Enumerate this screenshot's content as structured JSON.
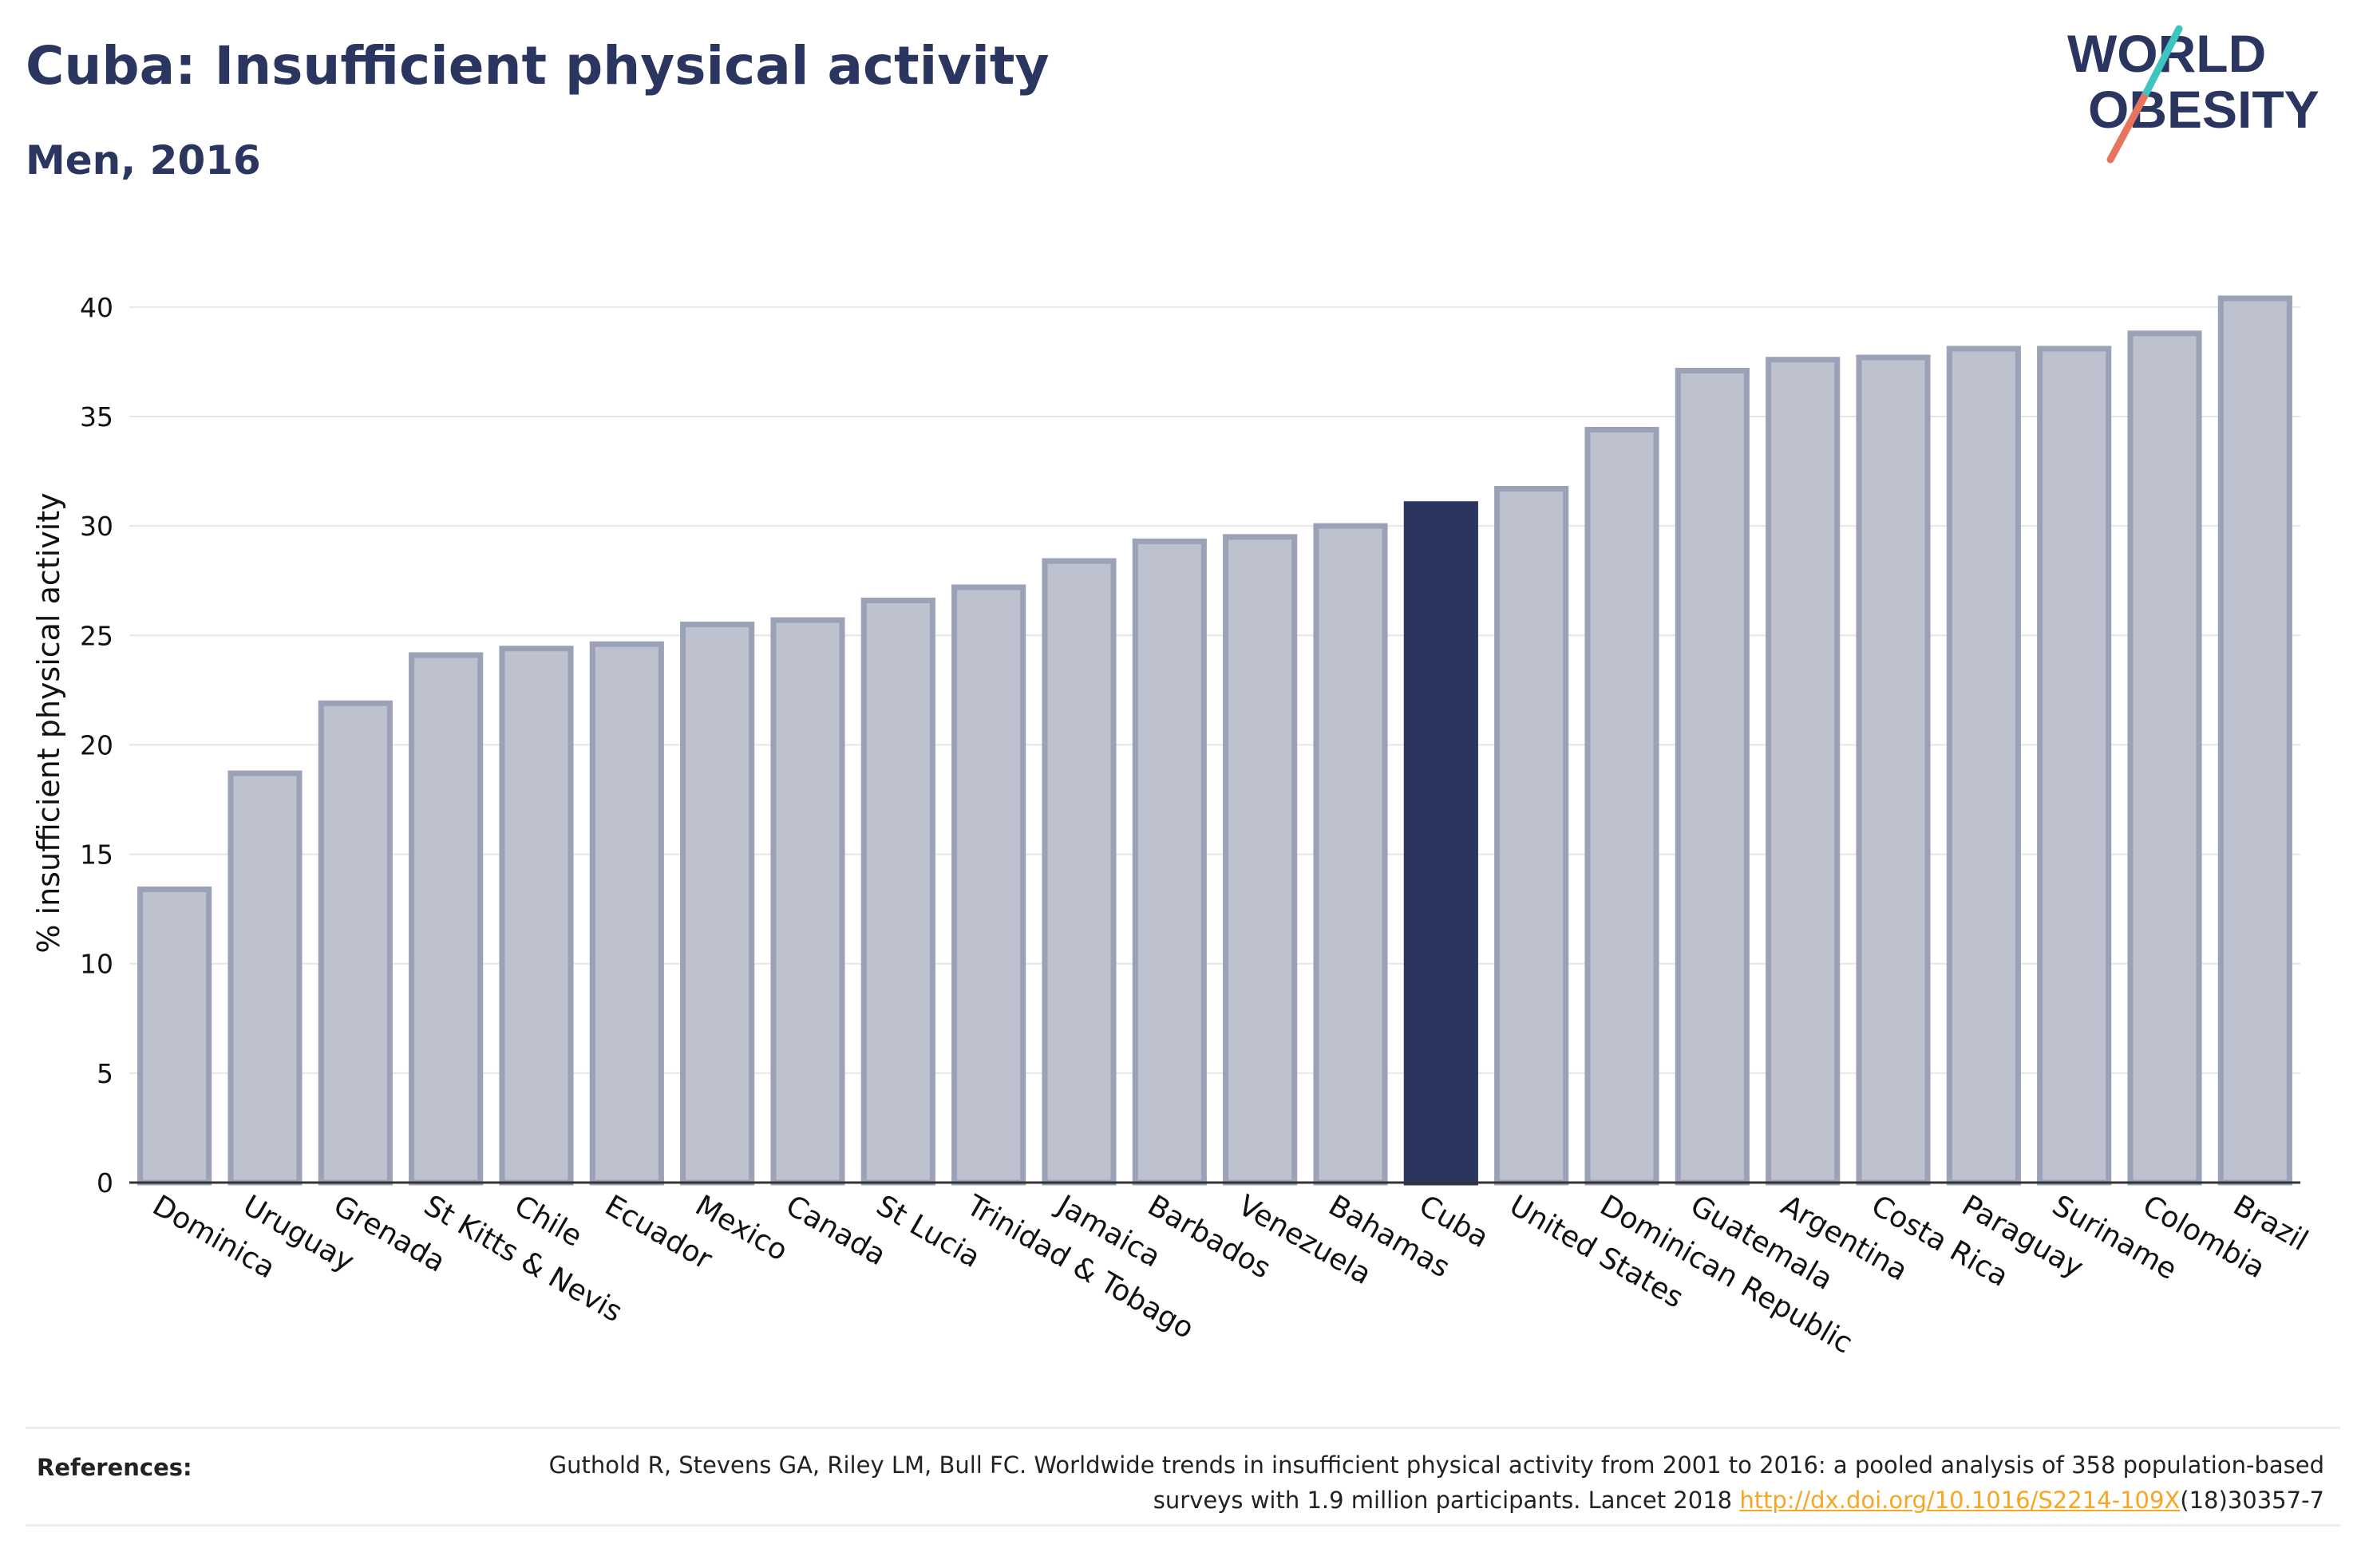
{
  "header": {
    "title": "Cuba: Insufficient physical activity",
    "subtitle": "Men, 2016"
  },
  "logo": {
    "line1": "WORLD",
    "line2": "OBESITY"
  },
  "chart_data": {
    "type": "bar",
    "title": "Cuba: Insufficient physical activity",
    "subtitle": "Men, 2016",
    "ylabel": "% insufficient physical activity",
    "xlabel": "",
    "ylim": [
      0,
      42
    ],
    "yticks": [
      0,
      5,
      10,
      15,
      20,
      25,
      30,
      35,
      40
    ],
    "grid": true,
    "highlight": "Cuba",
    "categories": [
      "Dominica",
      "Uruguay",
      "Grenada",
      "St Kitts & Nevis",
      "Chile",
      "Ecuador",
      "Mexico",
      "Canada",
      "St Lucia",
      "Trinidad & Tobago",
      "Jamaica",
      "Barbados",
      "Venezuela",
      "Bahamas",
      "Cuba",
      "United States",
      "Dominican Republic",
      "Guatemala",
      "Argentina",
      "Costa Rica",
      "Paraguay",
      "Suriname",
      "Colombia",
      "Brazil"
    ],
    "values": [
      13.4,
      18.7,
      21.9,
      24.1,
      24.4,
      24.6,
      25.5,
      25.7,
      26.6,
      27.2,
      28.4,
      29.3,
      29.5,
      30.0,
      31.0,
      31.7,
      34.4,
      37.1,
      37.6,
      37.7,
      38.1,
      38.1,
      38.8,
      40.4
    ]
  },
  "colors": {
    "bar": "#bec1ce",
    "bar_stroke": "#9ba1b7",
    "highlight": "#2a3560",
    "title": "#2a3560",
    "logo_teal": "#3ec5c0",
    "logo_coral": "#e8735f",
    "link": "#f5a623"
  },
  "references": {
    "label": "References:",
    "text_before_link": "Guthold R, Stevens GA, Riley LM, Bull FC. Worldwide trends in insufficient physical activity from 2001 to 2016: a pooled analysis of 358 population-based surveys with 1.9 million participants. Lancet 2018 ",
    "link": "http://dx.doi.org/10.1016/S2214-109X",
    "text_after_link": "(18)30357-7"
  }
}
